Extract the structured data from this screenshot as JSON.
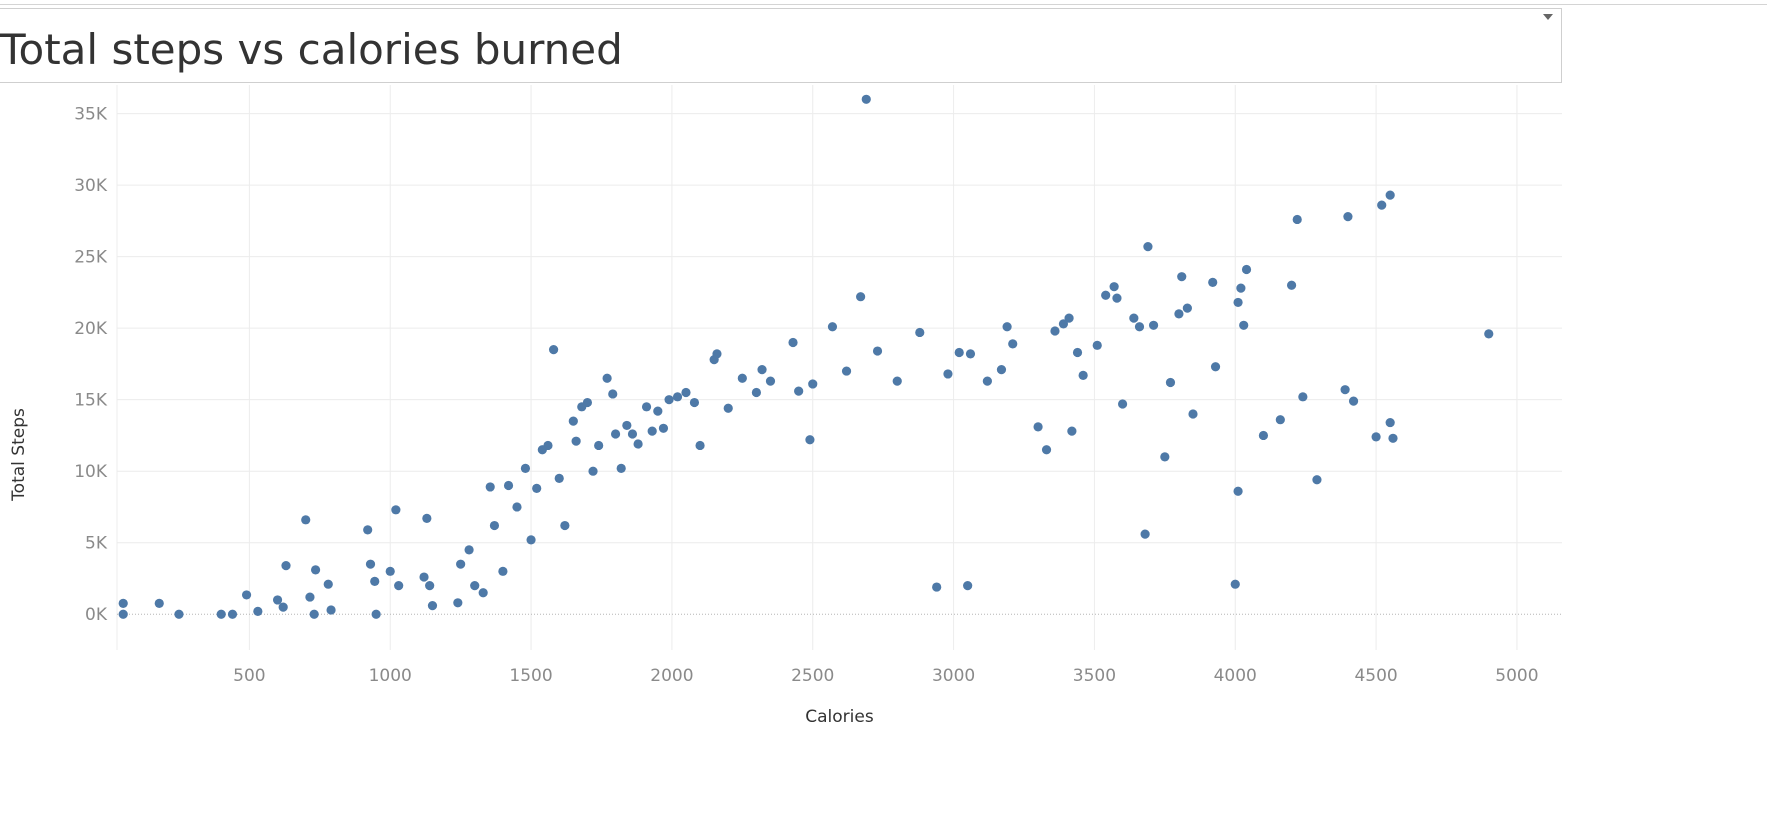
{
  "header": {
    "title": "Total steps vs calories burned"
  },
  "colors": {
    "marks": "#4e79a7",
    "grid": "#ececec",
    "axis_text": "#8a8a8a",
    "title_text": "#333333"
  },
  "icons": {
    "menu": "dropdown-caret"
  },
  "chart_data": {
    "type": "scatter",
    "title": "Total steps vs calories burned",
    "xlabel": "Calories",
    "ylabel": "Total Steps",
    "xlim": [
      30,
      5160
    ],
    "ylim": [
      -2500,
      37000
    ],
    "xticks": [
      500,
      1000,
      1500,
      2000,
      2500,
      3000,
      3500,
      4000,
      4500,
      5000
    ],
    "xtick_labels": [
      "500",
      "1000",
      "1500",
      "2000",
      "2500",
      "3000",
      "3500",
      "4000",
      "4500",
      "5000"
    ],
    "yticks": [
      0,
      5000,
      10000,
      15000,
      20000,
      25000,
      30000,
      35000
    ],
    "ytick_labels": [
      "0K",
      "5K",
      "10K",
      "15K",
      "20K",
      "25K",
      "30K",
      "35K"
    ],
    "grid": true,
    "legend": "none",
    "points": [
      [
        52,
        0
      ],
      [
        52,
        760
      ],
      [
        180,
        760
      ],
      [
        250,
        0
      ],
      [
        400,
        0
      ],
      [
        440,
        0
      ],
      [
        490,
        1350
      ],
      [
        530,
        200
      ],
      [
        600,
        1000
      ],
      [
        620,
        500
      ],
      [
        630,
        3400
      ],
      [
        700,
        6600
      ],
      [
        715,
        1200
      ],
      [
        730,
        0
      ],
      [
        735,
        3100
      ],
      [
        780,
        2100
      ],
      [
        790,
        300
      ],
      [
        920,
        5900
      ],
      [
        930,
        3500
      ],
      [
        945,
        2300
      ],
      [
        950,
        0
      ],
      [
        1000,
        3000
      ],
      [
        1020,
        7300
      ],
      [
        1030,
        2000
      ],
      [
        1120,
        2600
      ],
      [
        1130,
        6700
      ],
      [
        1140,
        2000
      ],
      [
        1150,
        600
      ],
      [
        1240,
        800
      ],
      [
        1280,
        4500
      ],
      [
        1250,
        3500
      ],
      [
        1300,
        2000
      ],
      [
        1330,
        1500
      ],
      [
        1355,
        8900
      ],
      [
        1370,
        6200
      ],
      [
        1400,
        3000
      ],
      [
        1420,
        9000
      ],
      [
        1450,
        7500
      ],
      [
        1480,
        10200
      ],
      [
        1500,
        5200
      ],
      [
        1520,
        8800
      ],
      [
        1540,
        11500
      ],
      [
        1560,
        11800
      ],
      [
        1580,
        18500
      ],
      [
        1600,
        9500
      ],
      [
        1620,
        6200
      ],
      [
        1650,
        13500
      ],
      [
        1660,
        12100
      ],
      [
        1680,
        14500
      ],
      [
        1700,
        14800
      ],
      [
        1720,
        10000
      ],
      [
        1740,
        11800
      ],
      [
        1770,
        16500
      ],
      [
        1790,
        15400
      ],
      [
        1800,
        12600
      ],
      [
        1820,
        10200
      ],
      [
        1840,
        13200
      ],
      [
        1860,
        12600
      ],
      [
        1880,
        11900
      ],
      [
        1910,
        14500
      ],
      [
        1930,
        12800
      ],
      [
        1950,
        14200
      ],
      [
        1970,
        13000
      ],
      [
        1990,
        15000
      ],
      [
        2020,
        15200
      ],
      [
        2050,
        15500
      ],
      [
        2080,
        14800
      ],
      [
        2100,
        11800
      ],
      [
        2150,
        17800
      ],
      [
        2160,
        18200
      ],
      [
        2200,
        14400
      ],
      [
        2250,
        16500
      ],
      [
        2300,
        15500
      ],
      [
        2320,
        17100
      ],
      [
        2350,
        16300
      ],
      [
        2430,
        19000
      ],
      [
        2450,
        15600
      ],
      [
        2490,
        12200
      ],
      [
        2500,
        16100
      ],
      [
        2570,
        20100
      ],
      [
        2620,
        17000
      ],
      [
        2670,
        22200
      ],
      [
        2690,
        36000
      ],
      [
        2730,
        18400
      ],
      [
        2800,
        16300
      ],
      [
        2880,
        19700
      ],
      [
        2940,
        1900
      ],
      [
        2980,
        16800
      ],
      [
        3020,
        18300
      ],
      [
        3050,
        2000
      ],
      [
        3060,
        18200
      ],
      [
        3120,
        16300
      ],
      [
        3170,
        17100
      ],
      [
        3190,
        20100
      ],
      [
        3210,
        18900
      ],
      [
        3300,
        13100
      ],
      [
        3330,
        11500
      ],
      [
        3360,
        19800
      ],
      [
        3390,
        20300
      ],
      [
        3410,
        20700
      ],
      [
        3420,
        12800
      ],
      [
        3440,
        18300
      ],
      [
        3460,
        16700
      ],
      [
        3510,
        18800
      ],
      [
        3540,
        22300
      ],
      [
        3570,
        22900
      ],
      [
        3580,
        22100
      ],
      [
        3600,
        14700
      ],
      [
        3640,
        20700
      ],
      [
        3660,
        20100
      ],
      [
        3680,
        5600
      ],
      [
        3690,
        25700
      ],
      [
        3710,
        20200
      ],
      [
        3750,
        11000
      ],
      [
        3770,
        16200
      ],
      [
        3800,
        21000
      ],
      [
        3810,
        23600
      ],
      [
        3830,
        21400
      ],
      [
        3850,
        14000
      ],
      [
        3920,
        23200
      ],
      [
        3930,
        17300
      ],
      [
        4000,
        2100
      ],
      [
        4010,
        21800
      ],
      [
        4020,
        22800
      ],
      [
        4030,
        20200
      ],
      [
        4040,
        24100
      ],
      [
        4010,
        8600
      ],
      [
        4100,
        12500
      ],
      [
        4160,
        13600
      ],
      [
        4200,
        23000
      ],
      [
        4220,
        27600
      ],
      [
        4240,
        15200
      ],
      [
        4290,
        9400
      ],
      [
        4390,
        15700
      ],
      [
        4400,
        27800
      ],
      [
        4420,
        14900
      ],
      [
        4500,
        12400
      ],
      [
        4520,
        28600
      ],
      [
        4550,
        29300
      ],
      [
        4550,
        13400
      ],
      [
        4560,
        12300
      ],
      [
        4900,
        19600
      ]
    ]
  }
}
